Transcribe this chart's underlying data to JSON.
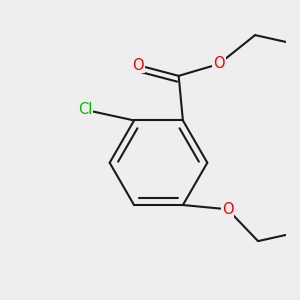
{
  "bg_color": "#eeeeee",
  "bond_color": "#1a1a1a",
  "bond_width": 1.5,
  "atom_colors": {
    "O": "#ff0000",
    "Cl": "#00bb00",
    "C": "#1a1a1a"
  },
  "font_size_atom": 10.5
}
